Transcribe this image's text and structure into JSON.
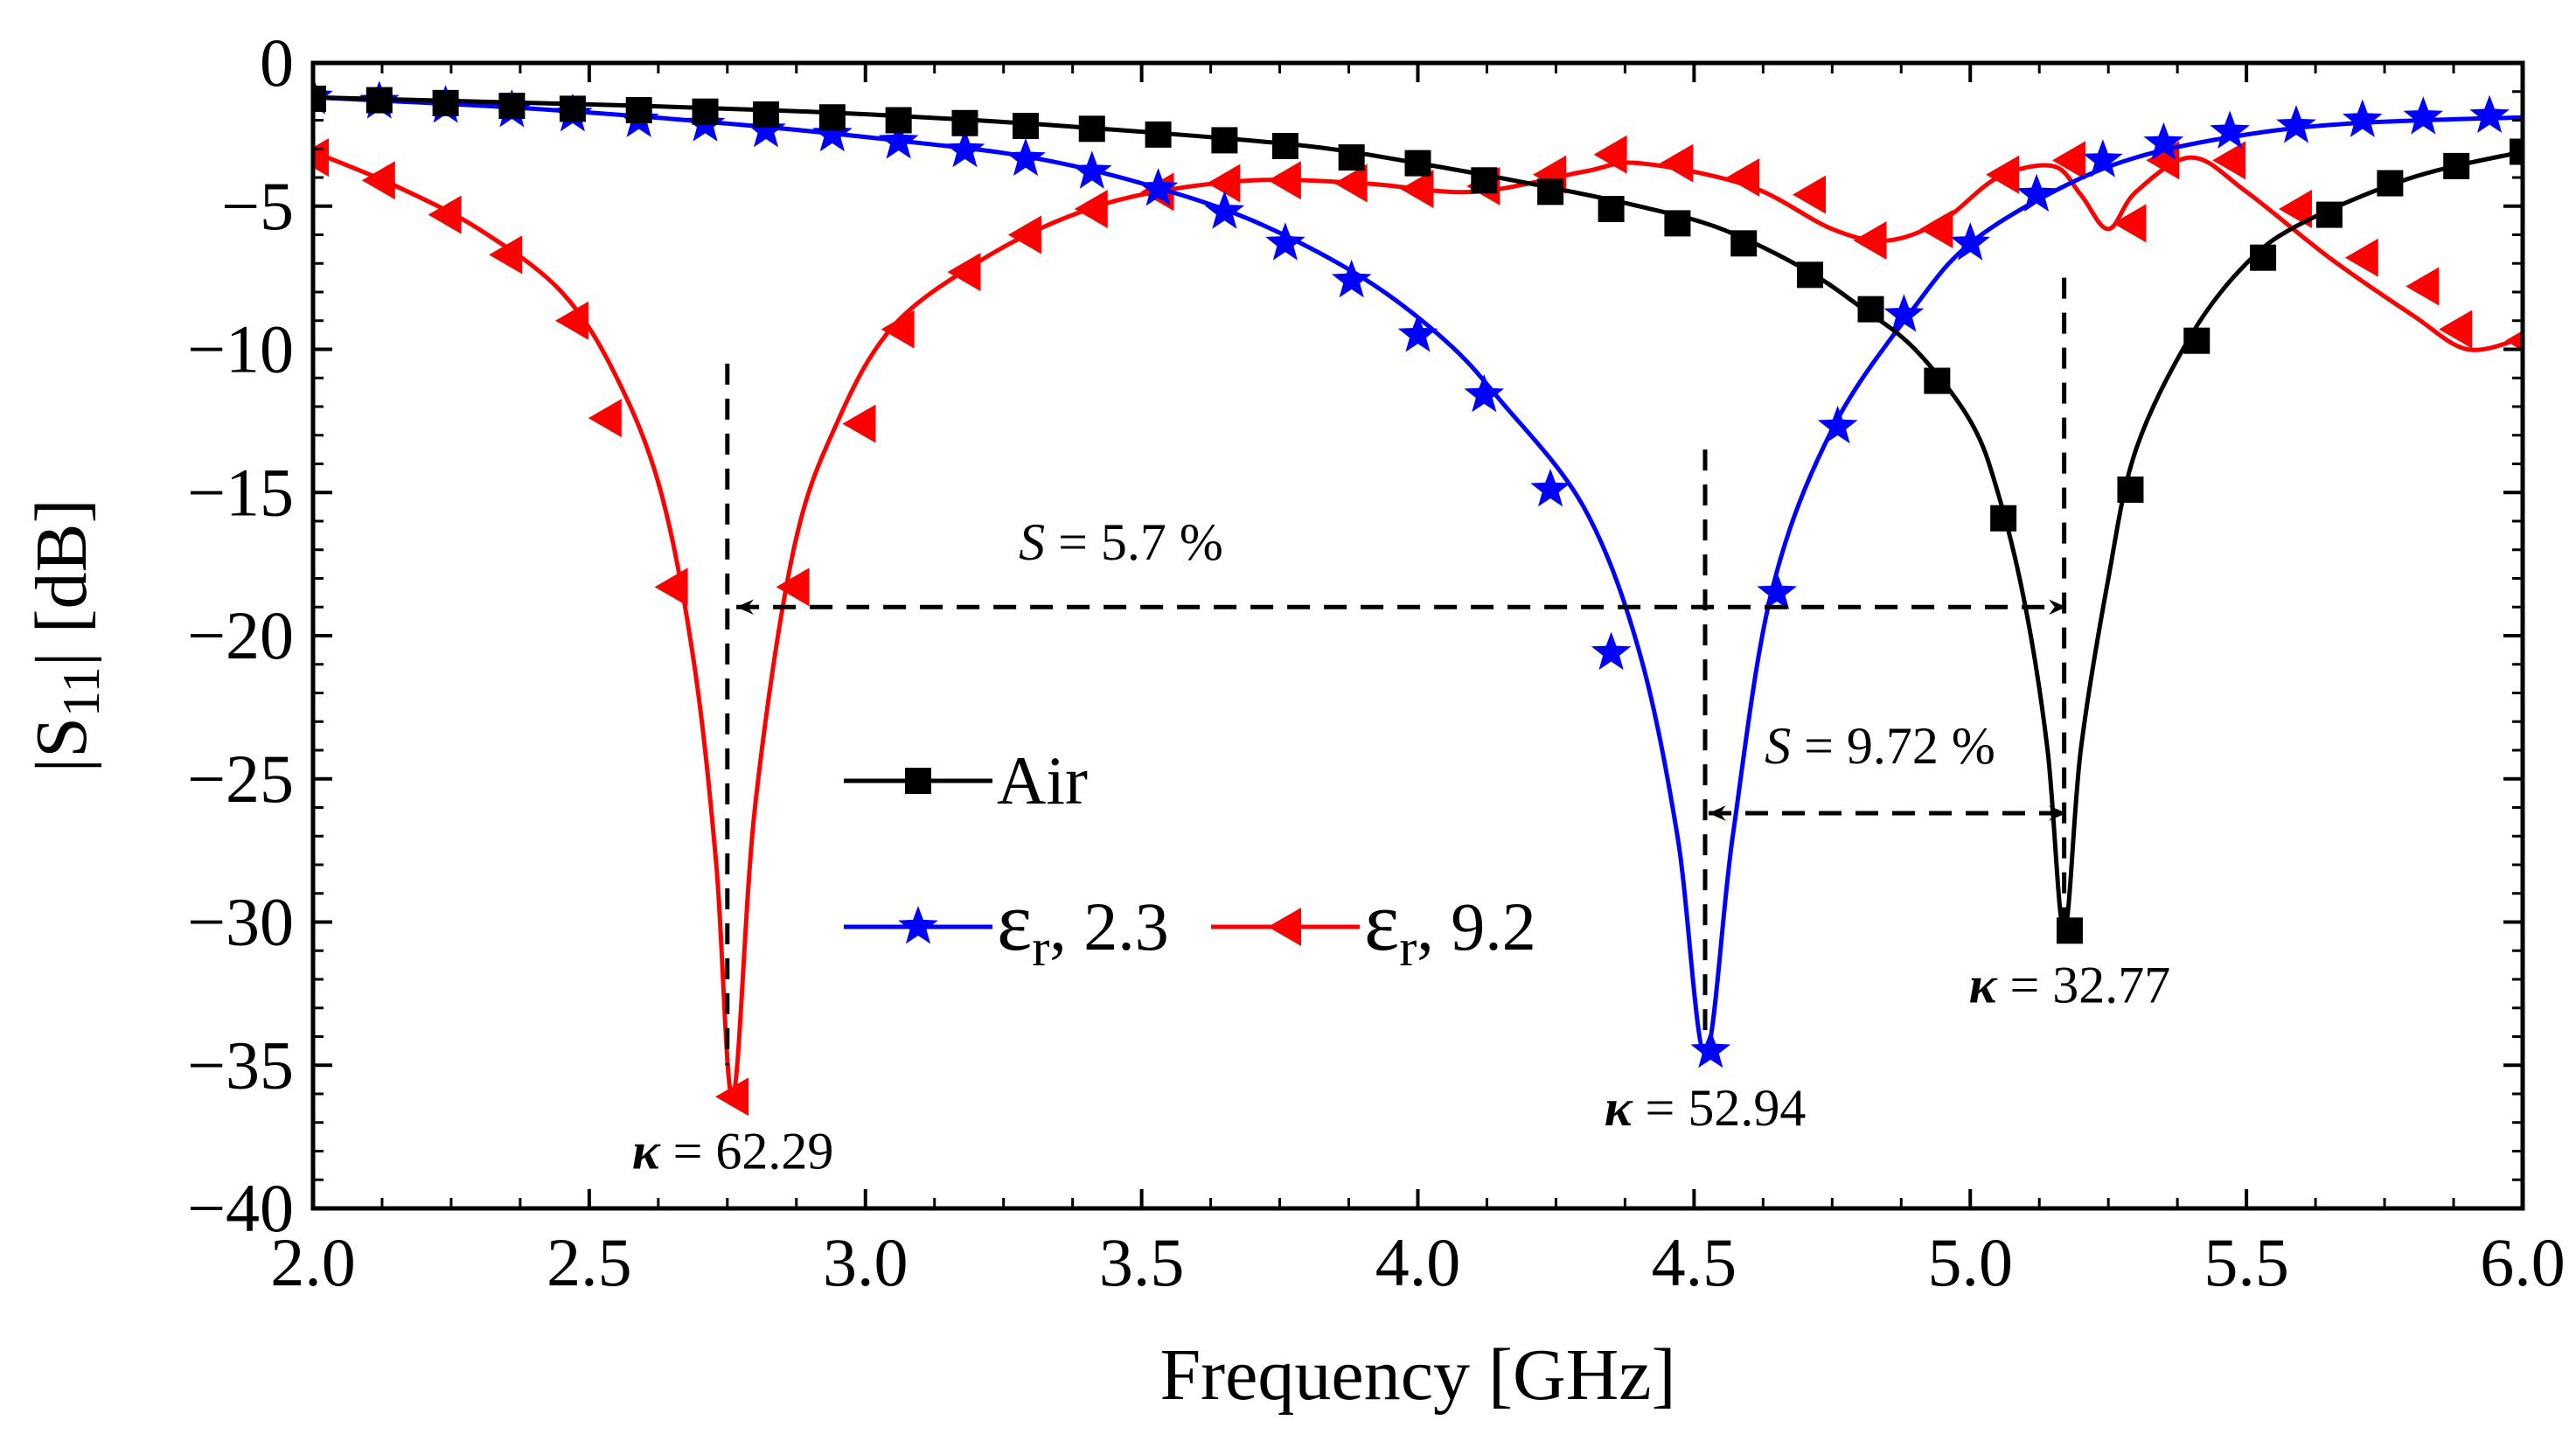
{
  "chart_data": {
    "type": "line",
    "title": "",
    "xlabel": "Frequency [GHz]",
    "ylabel_parts": {
      "pre": "|S",
      "sub": "11",
      "post": "| [dB]"
    },
    "xlim": [
      2.0,
      6.0
    ],
    "ylim": [
      -40,
      0
    ],
    "x_ticks": [
      "2.0",
      "2.5",
      "3.0",
      "3.5",
      "4.0",
      "4.5",
      "5.0",
      "5.5",
      "6.0"
    ],
    "y_ticks": [
      "0",
      "−5",
      "−10",
      "−15",
      "−20",
      "−25",
      "−30",
      "−35",
      "−40"
    ],
    "grid": false,
    "legend_position": "center",
    "series": [
      {
        "name": "Air",
        "color": "#000000",
        "marker": "square",
        "curve": [
          [
            2.0,
            -1.2
          ],
          [
            2.3,
            -1.35
          ],
          [
            2.6,
            -1.5
          ],
          [
            2.9,
            -1.7
          ],
          [
            3.2,
            -2.0
          ],
          [
            3.5,
            -2.4
          ],
          [
            3.8,
            -2.9
          ],
          [
            4.0,
            -3.5
          ],
          [
            4.2,
            -4.2
          ],
          [
            4.4,
            -5.0
          ],
          [
            4.55,
            -5.8
          ],
          [
            4.7,
            -7.2
          ],
          [
            4.8,
            -8.5
          ],
          [
            4.9,
            -10.0
          ],
          [
            5.0,
            -12.5
          ],
          [
            5.05,
            -15.0
          ],
          [
            5.1,
            -19.0
          ],
          [
            5.14,
            -24.0
          ],
          [
            5.17,
            -30.3
          ],
          [
            5.2,
            -24.0
          ],
          [
            5.25,
            -18.0
          ],
          [
            5.3,
            -13.5
          ],
          [
            5.4,
            -9.5
          ],
          [
            5.5,
            -7.0
          ],
          [
            5.6,
            -5.6
          ],
          [
            5.8,
            -4.0
          ],
          [
            6.0,
            -3.1
          ]
        ],
        "markers": [
          [
            2.0,
            -1.25
          ],
          [
            2.12,
            -1.3
          ],
          [
            2.24,
            -1.4
          ],
          [
            2.36,
            -1.5
          ],
          [
            2.47,
            -1.6
          ],
          [
            2.59,
            -1.65
          ],
          [
            2.71,
            -1.7
          ],
          [
            2.82,
            -1.8
          ],
          [
            2.94,
            -1.9
          ],
          [
            3.06,
            -2.0
          ],
          [
            3.18,
            -2.1
          ],
          [
            3.29,
            -2.2
          ],
          [
            3.41,
            -2.3
          ],
          [
            3.53,
            -2.5
          ],
          [
            3.65,
            -2.7
          ],
          [
            3.76,
            -2.9
          ],
          [
            3.88,
            -3.3
          ],
          [
            4.0,
            -3.5
          ],
          [
            4.12,
            -4.1
          ],
          [
            4.24,
            -4.5
          ],
          [
            4.35,
            -5.1
          ],
          [
            4.47,
            -5.6
          ],
          [
            4.59,
            -6.3
          ],
          [
            4.71,
            -7.4
          ],
          [
            4.82,
            -8.6
          ],
          [
            4.94,
            -11.1
          ],
          [
            5.06,
            -15.9
          ],
          [
            5.18,
            -30.3
          ],
          [
            5.29,
            -14.9
          ],
          [
            5.41,
            -9.7
          ],
          [
            5.53,
            -6.8
          ],
          [
            5.65,
            -5.3
          ],
          [
            5.76,
            -4.2
          ],
          [
            5.88,
            -3.6
          ],
          [
            6.0,
            -3.1
          ]
        ]
      },
      {
        "name": "εr, 2.3",
        "color": "#0000ff",
        "marker": "star",
        "curve": [
          [
            2.0,
            -1.2
          ],
          [
            2.4,
            -1.6
          ],
          [
            2.8,
            -2.2
          ],
          [
            3.1,
            -2.8
          ],
          [
            3.3,
            -3.3
          ],
          [
            3.5,
            -4.2
          ],
          [
            3.7,
            -5.5
          ],
          [
            3.9,
            -7.5
          ],
          [
            4.05,
            -9.7
          ],
          [
            4.15,
            -11.8
          ],
          [
            4.3,
            -15.5
          ],
          [
            4.4,
            -20.5
          ],
          [
            4.47,
            -27.0
          ],
          [
            4.52,
            -34.6
          ],
          [
            4.57,
            -27.0
          ],
          [
            4.64,
            -18.5
          ],
          [
            4.75,
            -12.8
          ],
          [
            4.9,
            -8.5
          ],
          [
            5.0,
            -6.3
          ],
          [
            5.15,
            -4.5
          ],
          [
            5.3,
            -3.3
          ],
          [
            5.5,
            -2.5
          ],
          [
            5.7,
            -2.1
          ],
          [
            6.0,
            -1.9
          ]
        ],
        "markers": [
          [
            2.0,
            -1.2
          ],
          [
            2.12,
            -1.35
          ],
          [
            2.24,
            -1.5
          ],
          [
            2.36,
            -1.65
          ],
          [
            2.47,
            -1.8
          ],
          [
            2.59,
            -2.0
          ],
          [
            2.71,
            -2.15
          ],
          [
            2.82,
            -2.35
          ],
          [
            2.94,
            -2.5
          ],
          [
            3.06,
            -2.75
          ],
          [
            3.18,
            -3.05
          ],
          [
            3.29,
            -3.35
          ],
          [
            3.41,
            -3.8
          ],
          [
            3.53,
            -4.4
          ],
          [
            3.65,
            -5.2
          ],
          [
            3.76,
            -6.3
          ],
          [
            3.88,
            -7.6
          ],
          [
            4.0,
            -9.5
          ],
          [
            4.12,
            -11.6
          ],
          [
            4.24,
            -14.9
          ],
          [
            4.35,
            -20.6
          ],
          [
            4.53,
            -34.5
          ],
          [
            4.65,
            -18.5
          ],
          [
            4.76,
            -12.7
          ],
          [
            4.88,
            -8.8
          ],
          [
            5.0,
            -6.3
          ],
          [
            5.12,
            -4.6
          ],
          [
            5.24,
            -3.4
          ],
          [
            5.35,
            -2.8
          ],
          [
            5.47,
            -2.4
          ],
          [
            5.59,
            -2.2
          ],
          [
            5.71,
            -2.0
          ],
          [
            5.82,
            -1.9
          ],
          [
            5.94,
            -1.85
          ]
        ]
      },
      {
        "name": "εr, 9.2",
        "color": "#ff0000",
        "marker": "triangle-left",
        "curve": [
          [
            2.0,
            -3.1
          ],
          [
            2.15,
            -4.3
          ],
          [
            2.3,
            -5.8
          ],
          [
            2.45,
            -8.0
          ],
          [
            2.55,
            -11.0
          ],
          [
            2.63,
            -15.0
          ],
          [
            2.69,
            -21.0
          ],
          [
            2.73,
            -28.0
          ],
          [
            2.76,
            -36.1
          ],
          [
            2.8,
            -26.0
          ],
          [
            2.87,
            -17.0
          ],
          [
            2.95,
            -12.5
          ],
          [
            3.05,
            -9.2
          ],
          [
            3.2,
            -7.0
          ],
          [
            3.35,
            -5.5
          ],
          [
            3.5,
            -4.6
          ],
          [
            3.7,
            -4.1
          ],
          [
            3.9,
            -4.2
          ],
          [
            4.1,
            -4.5
          ],
          [
            4.3,
            -3.8
          ],
          [
            4.4,
            -3.5
          ],
          [
            4.6,
            -4.3
          ],
          [
            4.75,
            -5.8
          ],
          [
            4.85,
            -6.2
          ],
          [
            4.95,
            -5.5
          ],
          [
            5.05,
            -4.0
          ],
          [
            5.15,
            -3.6
          ],
          [
            5.2,
            -4.6
          ],
          [
            5.25,
            -5.8
          ],
          [
            5.3,
            -4.5
          ],
          [
            5.4,
            -3.3
          ],
          [
            5.5,
            -4.5
          ],
          [
            5.65,
            -6.8
          ],
          [
            5.8,
            -8.8
          ],
          [
            5.9,
            -10.0
          ],
          [
            6.0,
            -9.6
          ]
        ],
        "markers": [
          [
            2.0,
            -3.3
          ],
          [
            2.12,
            -4.1
          ],
          [
            2.24,
            -5.3
          ],
          [
            2.35,
            -6.7
          ],
          [
            2.47,
            -9.0
          ],
          [
            2.53,
            -12.4
          ],
          [
            2.65,
            -18.3
          ],
          [
            2.76,
            -36.1
          ],
          [
            2.87,
            -18.3
          ],
          [
            2.99,
            -12.6
          ],
          [
            3.06,
            -9.3
          ],
          [
            3.18,
            -7.3
          ],
          [
            3.29,
            -6.0
          ],
          [
            3.41,
            -5.1
          ],
          [
            3.53,
            -4.5
          ],
          [
            3.65,
            -4.2
          ],
          [
            3.76,
            -4.1
          ],
          [
            3.88,
            -4.2
          ],
          [
            4.0,
            -4.4
          ],
          [
            4.12,
            -4.3
          ],
          [
            4.24,
            -3.9
          ],
          [
            4.35,
            -3.2
          ],
          [
            4.47,
            -3.5
          ],
          [
            4.59,
            -4.0
          ],
          [
            4.71,
            -4.6
          ],
          [
            4.82,
            -6.2
          ],
          [
            4.94,
            -5.8
          ],
          [
            5.06,
            -3.9
          ],
          [
            5.18,
            -3.4
          ],
          [
            5.29,
            -5.6
          ],
          [
            5.35,
            -3.4
          ],
          [
            5.47,
            -3.4
          ],
          [
            5.59,
            -5.1
          ],
          [
            5.71,
            -6.8
          ],
          [
            5.82,
            -7.8
          ],
          [
            5.88,
            -9.3
          ],
          [
            6.0,
            -9.7
          ]
        ]
      }
    ],
    "legend": [
      {
        "label": "Air",
        "series": 0
      },
      {
        "label_main": "ε",
        "label_sub": "r",
        "label_rest": ", 2.3",
        "series": 1
      },
      {
        "label_main": "ε",
        "label_sub": "r",
        "label_rest": ", 9.2",
        "series": 2
      }
    ],
    "annotations": {
      "bandwidth_1": {
        "S_symbol": "S",
        "text": " = 5.7 %",
        "x_from": 2.76,
        "x_to": 5.18,
        "y": -19.0
      },
      "bandwidth_2": {
        "S_symbol": "S",
        "text": " = 9.72 %",
        "x_from": 4.52,
        "x_to": 5.18,
        "y": -26.2
      },
      "kappa_labels": [
        {
          "symbol": "κ",
          "text": " = 62.29",
          "x": 2.76,
          "y": -36.1
        },
        {
          "symbol": "κ",
          "text": " = 52.94",
          "x": 4.52,
          "y": -34.6
        },
        {
          "symbol": "κ",
          "text": " = 32.77",
          "x": 5.18,
          "y": -30.3
        }
      ],
      "dashed_verticals": [
        {
          "x": 2.75,
          "y_top": -10.5,
          "y_bottom": -35.0
        },
        {
          "x": 4.52,
          "y_top": -13.5,
          "y_bottom": -34.0
        },
        {
          "x": 5.17,
          "y_top": -7.5,
          "y_bottom": -30.0
        }
      ]
    }
  }
}
